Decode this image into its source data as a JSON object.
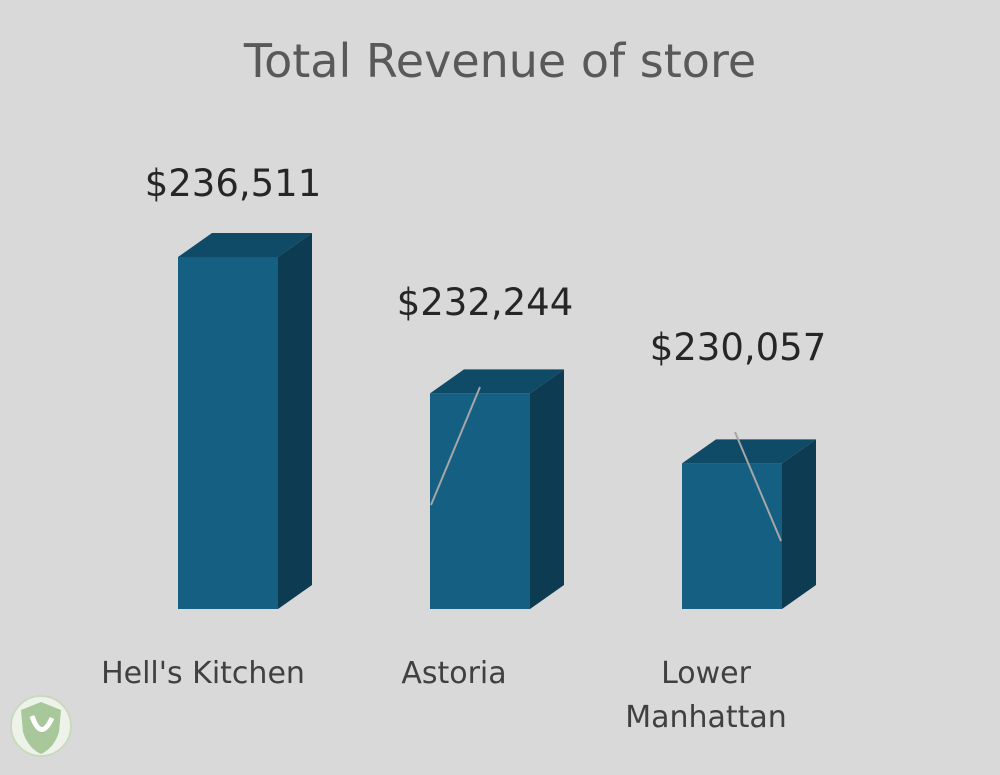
{
  "chart_data": {
    "type": "bar",
    "title": "Total Revenue of store",
    "categories": [
      "Hell's Kitchen",
      "Astoria",
      "Lower Manhattan"
    ],
    "values": [
      236511,
      232244,
      230057
    ],
    "data_labels": [
      "$236,511",
      "$232,244",
      "$230,057"
    ],
    "ylim": [
      225500,
      237000
    ],
    "grid": false,
    "legend": "none",
    "style": "3d-column"
  },
  "colors": {
    "background": "#d9d9d9",
    "bar_front": "#156082",
    "bar_top": "#0f4a66",
    "bar_side": "#0c3b52",
    "title": "#595959",
    "leader_line": "#a6a6a6"
  },
  "logo_icon": "shield-leaf-icon"
}
